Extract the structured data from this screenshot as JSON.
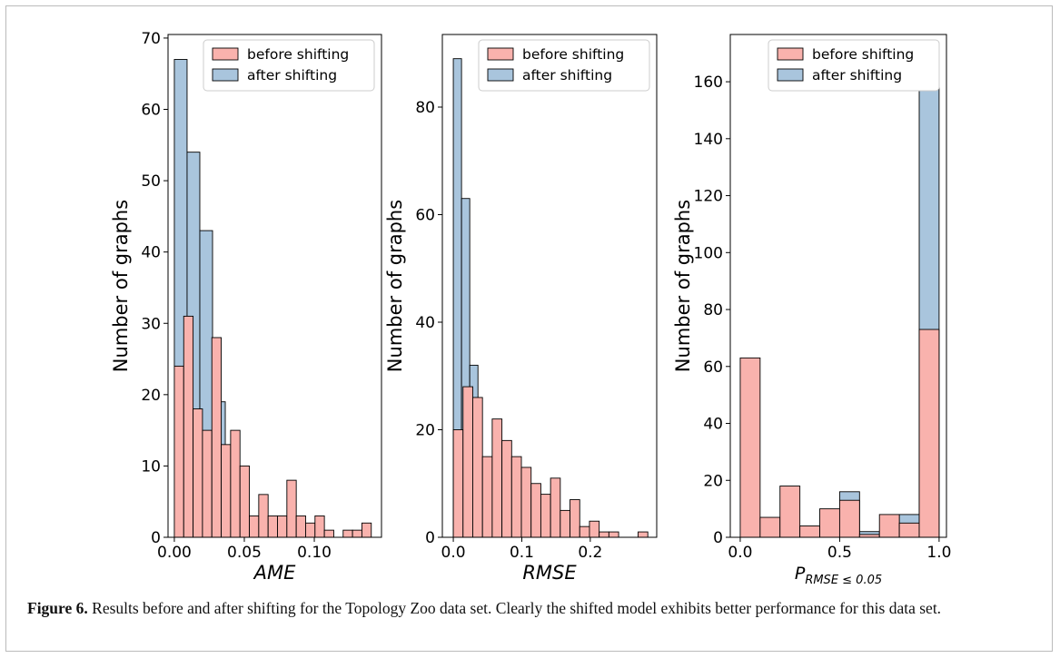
{
  "chart_data": [
    {
      "type": "histogram",
      "xlabel": "AME",
      "ylabel": "Number of graphs",
      "xlim": [
        -0.0045,
        0.148
      ],
      "ylim": [
        0,
        70.5
      ],
      "xticks": [
        {
          "value": 0,
          "label": "0.00"
        },
        {
          "value": 0.05,
          "label": "0.05"
        },
        {
          "value": 0.1,
          "label": "0.10"
        }
      ],
      "yticks": [
        0,
        10,
        20,
        30,
        40,
        50,
        60,
        70
      ],
      "legend": "upper right",
      "series": [
        {
          "name": "before shifting",
          "color": "#f9b2ad",
          "bins": [
            0,
            0.0067,
            0.0134,
            0.0201,
            0.0268,
            0.0335,
            0.0402,
            0.0469,
            0.0536,
            0.0603,
            0.067,
            0.0737,
            0.0804,
            0.0871,
            0.0938,
            0.1005,
            0.1072,
            0.1139,
            0.1206,
            0.1273,
            0.134,
            0.1407
          ],
          "values": [
            24,
            31,
            18,
            15,
            28,
            13,
            15,
            10,
            3,
            6,
            3,
            3,
            8,
            3,
            2,
            3,
            1,
            0,
            1,
            1,
            2
          ]
        },
        {
          "name": "after shifting",
          "color": "#a9c5dd",
          "bins": [
            0,
            0.0091,
            0.0182,
            0.0273,
            0.0364
          ],
          "values": [
            67,
            54,
            43,
            19
          ]
        }
      ]
    },
    {
      "type": "histogram",
      "xlabel": "RMSE",
      "ylabel": "Number of graphs",
      "xlim": [
        -0.016,
        0.297
      ],
      "ylim": [
        0,
        93.5
      ],
      "xticks": [
        {
          "value": 0,
          "label": "0.0"
        },
        {
          "value": 0.1,
          "label": "0.1"
        },
        {
          "value": 0.2,
          "label": "0.2"
        }
      ],
      "yticks": [
        0,
        20,
        40,
        60,
        80
      ],
      "legend": "upper right",
      "series": [
        {
          "name": "before shifting",
          "color": "#f9b2ad",
          "bins": [
            0,
            0.0142,
            0.0284,
            0.0426,
            0.0568,
            0.071,
            0.0852,
            0.0994,
            0.1136,
            0.1278,
            0.142,
            0.1562,
            0.1704,
            0.1846,
            0.1988,
            0.213,
            0.2272,
            0.2414,
            0.2556,
            0.2698,
            0.284
          ],
          "values": [
            20,
            28,
            26,
            15,
            22,
            18,
            15,
            13,
            10,
            8,
            11,
            5,
            7,
            2,
            3,
            1,
            1,
            0,
            0,
            1
          ]
        },
        {
          "name": "after shifting",
          "color": "#a9c5dd",
          "bins": [
            0,
            0.012,
            0.024,
            0.036
          ],
          "values": [
            89,
            63,
            32
          ]
        }
      ]
    },
    {
      "type": "histogram",
      "xlabel": "P",
      "xlabel_subscript": "RMSE ≤ 0.05",
      "ylabel": "Number of graphs",
      "xlim": [
        -0.05,
        1.037
      ],
      "ylim": [
        0,
        176.6
      ],
      "xticks": [
        {
          "value": 0,
          "label": "0.0"
        },
        {
          "value": 0.5,
          "label": "0.5"
        },
        {
          "value": 1,
          "label": "1.0"
        }
      ],
      "yticks": [
        0,
        20,
        40,
        60,
        80,
        100,
        120,
        140,
        160
      ],
      "legend": "upper right",
      "series": [
        {
          "name": "before shifting",
          "color": "#f9b2ad",
          "bins": [
            0,
            0.1,
            0.2,
            0.3,
            0.4,
            0.5,
            0.6,
            0.7,
            0.8,
            0.9,
            1
          ],
          "values": [
            63,
            7,
            18,
            4,
            10,
            13,
            1,
            8,
            5,
            73
          ]
        },
        {
          "name": "after shifting",
          "color": "#a9c5dd",
          "bins": [
            0,
            0.1,
            0.2,
            0.3,
            0.4,
            0.5,
            0.6,
            0.7,
            0.8,
            0.9,
            1
          ],
          "values": [
            0,
            0,
            0,
            0,
            0,
            16,
            2,
            0,
            8,
            168
          ]
        }
      ]
    }
  ],
  "caption": {
    "label": "Figure 6.",
    "text": "Results before and after shifting for the Topology Zoo data set. Clearly the shifted model exhibits better performance for this data set."
  }
}
